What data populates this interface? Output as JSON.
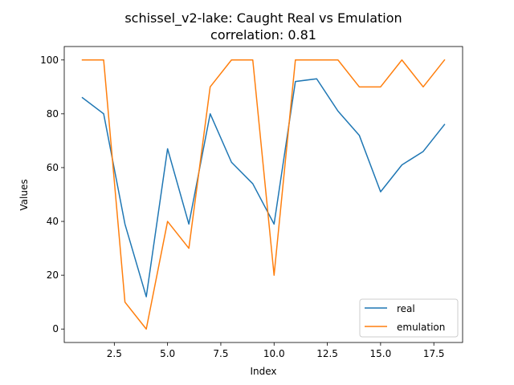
{
  "chart_data": {
    "type": "line",
    "title": "schissel_v2-lake: Caught Real vs Emulation",
    "subtitle": "correlation: 0.81",
    "xlabel": "Index",
    "ylabel": "Values",
    "x": [
      1,
      2,
      3,
      4,
      5,
      6,
      7,
      8,
      9,
      10,
      11,
      12,
      13,
      14,
      15,
      16,
      17,
      18
    ],
    "xlim": [
      0.15,
      18.85
    ],
    "ylim": [
      -5,
      105
    ],
    "xticks": [
      2.5,
      5.0,
      7.5,
      10.0,
      12.5,
      15.0,
      17.5
    ],
    "xtick_labels": [
      "2.5",
      "5.0",
      "7.5",
      "10.0",
      "12.5",
      "15.0",
      "17.5"
    ],
    "yticks": [
      0,
      20,
      40,
      60,
      80,
      100
    ],
    "ytick_labels": [
      "0",
      "20",
      "40",
      "60",
      "80",
      "100"
    ],
    "grid": false,
    "legend_position": "bottom-right",
    "series": [
      {
        "name": "real",
        "color": "#1f77b4",
        "values": [
          86,
          80,
          39,
          12,
          67,
          39,
          80,
          62,
          54,
          39,
          92,
          93,
          81,
          72,
          51,
          61,
          66,
          76
        ]
      },
      {
        "name": "emulation",
        "color": "#ff7f0e",
        "values": [
          100,
          100,
          10,
          0,
          40,
          30,
          90,
          100,
          100,
          20,
          100,
          100,
          100,
          90,
          90,
          100,
          90,
          100
        ]
      }
    ]
  }
}
